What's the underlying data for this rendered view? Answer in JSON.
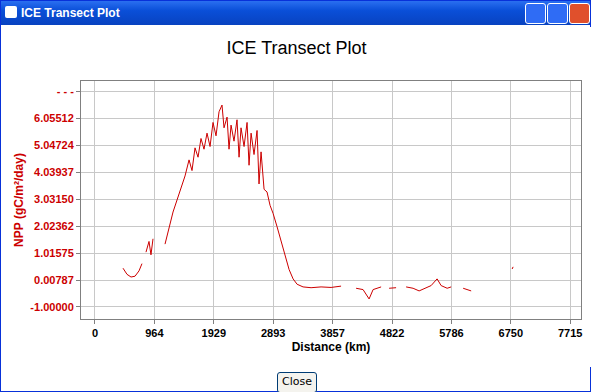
{
  "window": {
    "title": "ICE Transect Plot",
    "button": "Close"
  },
  "chart_data": {
    "type": "line",
    "title": "ICE Transect Plot",
    "x_label": "Distance (km)",
    "y_label": "NPP (gC/m²/day)",
    "x": [
      455,
      520,
      585,
      650,
      715,
      763,
      780,
      828,
      877,
      909,
      942,
      980,
      1137,
      1202,
      1267,
      1332,
      1397,
      1462,
      1527,
      1575,
      1624,
      1673,
      1721,
      1770,
      1819,
      1868,
      1916,
      1965,
      2014,
      2062,
      2095,
      2144,
      2176,
      2209,
      2257,
      2306,
      2339,
      2371,
      2420,
      2469,
      2501,
      2534,
      2582,
      2631,
      2663,
      2696,
      2745,
      2793,
      2842,
      2891,
      2956,
      3021,
      3086,
      3151,
      3216,
      3281,
      3378,
      3508,
      3670,
      3833,
      3995,
      4050,
      4239,
      4352,
      4450,
      4515,
      4645,
      4700,
      4775,
      4888,
      4950,
      5051,
      5164,
      5262,
      5359,
      5457,
      5554,
      5619,
      5717,
      5782,
      5850,
      5977,
      6107,
      6200,
      6772,
      6788
    ],
    "series": [
      {
        "name": "NPP",
        "color": "#cc0000",
        "values": [
          0.45,
          0.22,
          0.12,
          0.15,
          0.35,
          0.62,
          null,
          1.05,
          1.45,
          0.95,
          1.55,
          null,
          1.35,
          2.0,
          2.55,
          3.0,
          3.45,
          3.9,
          4.5,
          4.1,
          4.95,
          4.6,
          5.3,
          4.9,
          5.5,
          5.0,
          5.9,
          5.4,
          6.3,
          6.55,
          5.7,
          6.1,
          4.9,
          5.8,
          5.2,
          6.0,
          4.6,
          5.7,
          5.0,
          5.9,
          4.3,
          5.5,
          4.7,
          5.6,
          3.6,
          4.8,
          3.4,
          3.3,
          2.8,
          2.5,
          2.0,
          1.45,
          0.9,
          0.4,
          0.05,
          -0.15,
          -0.25,
          -0.28,
          -0.25,
          -0.27,
          -0.22,
          null,
          -0.3,
          -0.35,
          -0.7,
          -0.35,
          -0.25,
          null,
          -0.3,
          -0.28,
          null,
          -0.25,
          -0.3,
          -0.4,
          -0.3,
          -0.2,
          0.05,
          -0.2,
          -0.3,
          -0.25,
          null,
          -0.3,
          -0.4,
          null,
          0.42,
          0.5
        ]
      }
    ],
    "xlim": [
      -227,
      7890
    ],
    "xticks": [
      0,
      964,
      1929,
      2893,
      3857,
      4822,
      5786,
      6750,
      7715
    ],
    "ylim": [
      -1.45,
      7.45
    ],
    "yticks": [
      {
        "value": -1.0,
        "label": "-1.00000"
      },
      0.00787,
      1.01575,
      2.02362,
      {
        "value": 3.0315,
        "label": "3.03150"
      },
      4.03937,
      5.04724,
      6.05512,
      {
        "value": 7.06299,
        "label": "- - -"
      }
    ],
    "grid": true
  }
}
